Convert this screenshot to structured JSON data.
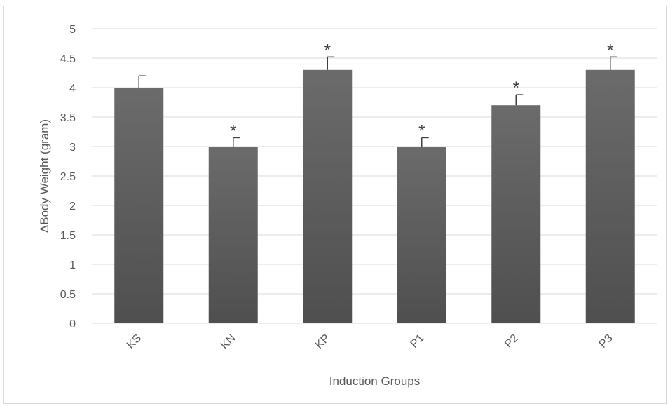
{
  "chart_data": {
    "type": "bar",
    "title": "",
    "xlabel": "Induction Groups",
    "ylabel": "ΔBody Weight (gram)",
    "categories": [
      "KS",
      "KN",
      "KP",
      "P1",
      "P2",
      "P3"
    ],
    "values": [
      4.0,
      3.0,
      4.3,
      3.0,
      3.7,
      4.3
    ],
    "error_bars": [
      0.2,
      0.15,
      0.22,
      0.15,
      0.18,
      0.22
    ],
    "significance": [
      "",
      "*",
      "*",
      "*",
      "*",
      "*"
    ],
    "ylim": [
      0,
      5
    ],
    "yticks": [
      "0",
      "0.5",
      "1",
      "1.5",
      "2",
      "2.5",
      "3",
      "3.5",
      "4",
      "4.5",
      "5"
    ],
    "grid": true,
    "legend": "none",
    "colors": {
      "bar": "#595959",
      "bar_top": "#6e6e6e",
      "grid": "#d9d9d9",
      "axis_text": "#595959",
      "error_bar": "#404040"
    }
  }
}
